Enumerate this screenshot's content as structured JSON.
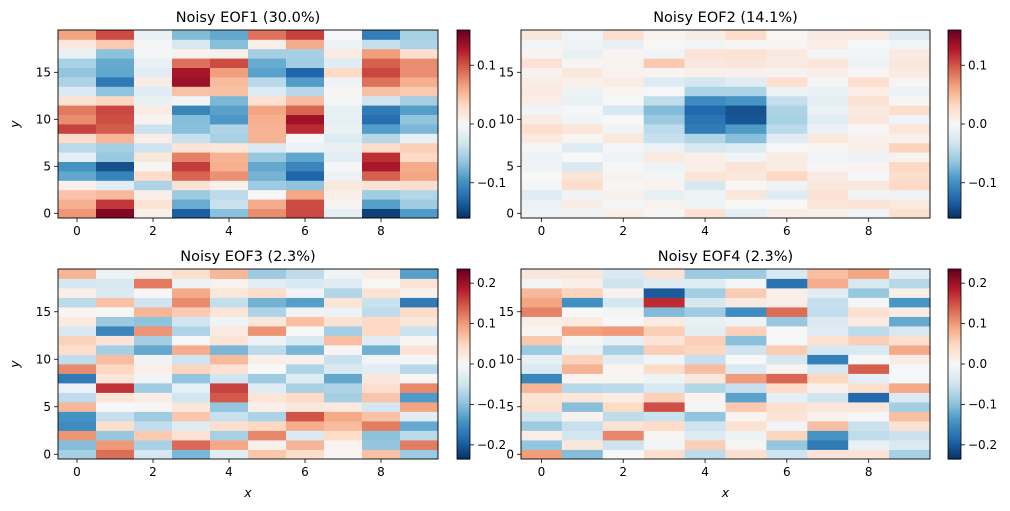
{
  "chart_data": [
    {
      "type": "heatmap",
      "title": "Noisy EOF1 (30.0%)",
      "xlabel": "",
      "ylabel": "y",
      "x_ticks": [
        "0",
        "2",
        "4",
        "6",
        "8"
      ],
      "y_ticks": [
        "0",
        "5",
        "10",
        "15"
      ],
      "colorbar_ticks": [
        "0.1",
        "0.0",
        "−0.1"
      ],
      "colorbar_tick_values": [
        0.1,
        0.0,
        -0.1
      ],
      "vmin": -0.16,
      "vmax": 0.16,
      "colormap": "RdBu_r",
      "pattern": "eof1",
      "seed": 11,
      "noise": 0.02,
      "grid": false
    },
    {
      "type": "heatmap",
      "title": "Noisy EOF2 (14.1%)",
      "xlabel": "",
      "ylabel": "",
      "x_ticks": [
        "0",
        "2",
        "4",
        "6",
        "8"
      ],
      "y_ticks": [
        "0",
        "5",
        "10",
        "15"
      ],
      "colorbar_ticks": [
        "0.1",
        "0.0",
        "−0.1"
      ],
      "colorbar_tick_values": [
        0.1,
        0.0,
        -0.1
      ],
      "vmin": -0.16,
      "vmax": 0.16,
      "colormap": "RdBu_r",
      "pattern": "eof2",
      "seed": 23,
      "noise": 0.012,
      "grid": false
    },
    {
      "type": "heatmap",
      "title": "Noisy EOF3 (2.3%)",
      "xlabel": "x",
      "ylabel": "y",
      "x_ticks": [
        "0",
        "2",
        "4",
        "6",
        "8"
      ],
      "y_ticks": [
        "0",
        "5",
        "10",
        "15"
      ],
      "colorbar_ticks": [
        "0.2",
        "0.1",
        "0.0",
        "−0.1",
        "−0.2"
      ],
      "colorbar_tick_values": [
        0.2,
        0.1,
        0.0,
        -0.1,
        -0.2
      ],
      "vmin": -0.235,
      "vmax": 0.235,
      "colormap": "RdBu_r",
      "pattern": "noise",
      "seed": 37,
      "noise": 0.07,
      "grid": false
    },
    {
      "type": "heatmap",
      "title": "Noisy EOF4 (2.3%)",
      "xlabel": "x",
      "ylabel": "",
      "x_ticks": [
        "0",
        "2",
        "4",
        "6",
        "8"
      ],
      "y_ticks": [
        "0",
        "5",
        "10",
        "15"
      ],
      "colorbar_ticks": [
        "0.2",
        "0.1",
        "0.0",
        "−0.1",
        "−0.2"
      ],
      "colorbar_tick_values": [
        0.2,
        0.1,
        0.0,
        -0.1,
        -0.2
      ],
      "vmin": -0.235,
      "vmax": 0.235,
      "colormap": "RdBu_r",
      "pattern": "noise",
      "seed": 53,
      "noise": 0.07,
      "grid": false
    }
  ]
}
